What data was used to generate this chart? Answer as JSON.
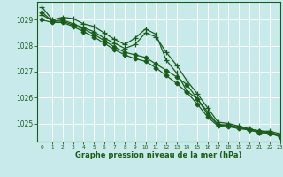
{
  "background_color": "#c8eaea",
  "plot_bg_color": "#c8eaea",
  "grid_color": "#ffffff",
  "line_color": "#1a5c1a",
  "xlabel": "Graphe pression niveau de la mer (hPa)",
  "ylim": [
    1024.3,
    1029.7
  ],
  "xlim": [
    -0.5,
    23
  ],
  "yticks": [
    1025,
    1026,
    1027,
    1028,
    1029
  ],
  "xticks": [
    0,
    1,
    2,
    3,
    4,
    5,
    6,
    7,
    8,
    9,
    10,
    11,
    12,
    13,
    14,
    15,
    16,
    17,
    18,
    19,
    20,
    21,
    22,
    23
  ],
  "series": [
    {
      "x": [
        0,
        1,
        2,
        3,
        4,
        5,
        6,
        7,
        8,
        9,
        10,
        11,
        12,
        13,
        14,
        15,
        16,
        17,
        18,
        19,
        20,
        21,
        22,
        23
      ],
      "y": [
        1029.5,
        1029.0,
        1029.1,
        1029.05,
        1028.85,
        1028.75,
        1028.5,
        1028.25,
        1028.05,
        1028.3,
        1028.65,
        1028.45,
        1027.45,
        1026.95,
        1026.25,
        1025.95,
        1025.45,
        1024.95,
        1024.95,
        1024.85,
        1024.75,
        1024.65,
        1024.65,
        1024.55
      ],
      "marker": "+",
      "markersize": 4,
      "lw": 0.9
    },
    {
      "x": [
        0,
        1,
        2,
        3,
        4,
        5,
        6,
        7,
        8,
        9,
        10,
        11,
        12,
        13,
        14,
        15,
        16,
        17,
        18,
        19,
        20,
        21,
        22,
        23
      ],
      "y": [
        1029.2,
        1028.95,
        1029.0,
        1028.85,
        1028.7,
        1028.55,
        1028.3,
        1028.1,
        1027.9,
        1028.05,
        1028.5,
        1028.35,
        1027.75,
        1027.25,
        1026.65,
        1026.15,
        1025.6,
        1025.05,
        1025.0,
        1024.9,
        1024.8,
        1024.7,
        1024.7,
        1024.6
      ],
      "marker": "+",
      "markersize": 4,
      "lw": 0.9
    },
    {
      "x": [
        0,
        1,
        2,
        3,
        4,
        5,
        6,
        7,
        8,
        9,
        10,
        11,
        12,
        13,
        14,
        15,
        16,
        17,
        18,
        19,
        20,
        21,
        22,
        23
      ],
      "y": [
        1029.3,
        1028.95,
        1028.95,
        1028.8,
        1028.65,
        1028.45,
        1028.2,
        1027.95,
        1027.75,
        1027.65,
        1027.55,
        1027.3,
        1027.05,
        1026.8,
        1026.5,
        1025.95,
        1025.35,
        1024.95,
        1024.92,
        1024.85,
        1024.78,
        1024.72,
        1024.65,
        1024.52
      ],
      "marker": "D",
      "markersize": 2.5,
      "lw": 0.9
    },
    {
      "x": [
        0,
        1,
        2,
        3,
        4,
        5,
        6,
        7,
        8,
        9,
        10,
        11,
        12,
        13,
        14,
        15,
        16,
        17,
        18,
        19,
        20,
        21,
        22,
        23
      ],
      "y": [
        1029.0,
        1028.9,
        1028.9,
        1028.75,
        1028.55,
        1028.35,
        1028.1,
        1027.85,
        1027.65,
        1027.5,
        1027.4,
        1027.15,
        1026.85,
        1026.55,
        1026.2,
        1025.75,
        1025.25,
        1024.9,
        1024.88,
        1024.8,
        1024.75,
        1024.65,
        1024.62,
        1024.48
      ],
      "marker": "D",
      "markersize": 2.5,
      "lw": 0.9
    }
  ]
}
